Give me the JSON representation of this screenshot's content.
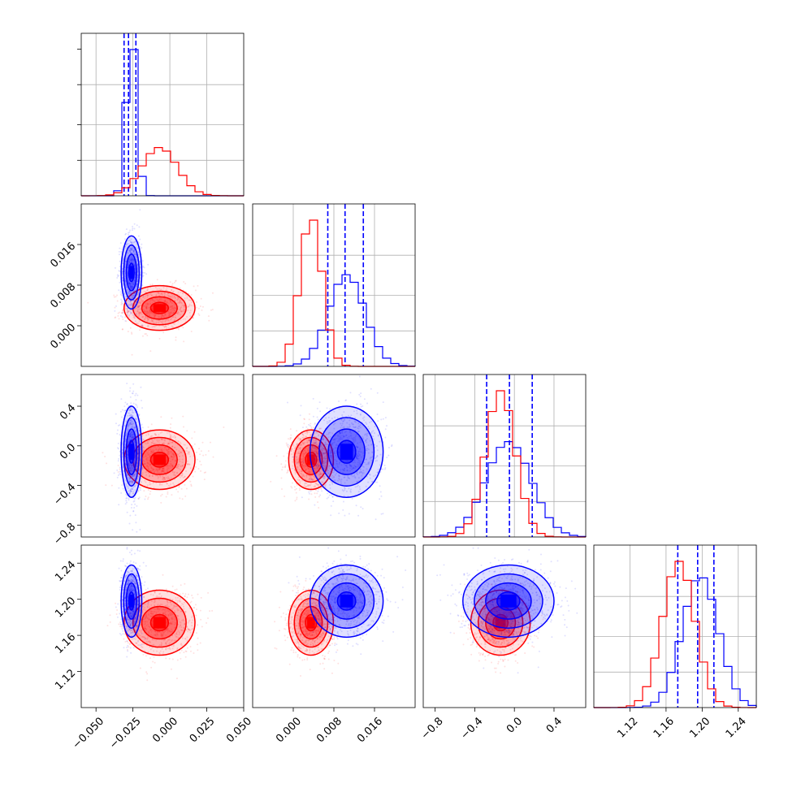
{
  "chart_data": {
    "type": "corner",
    "colors": {
      "blue": "#0000ff",
      "red": "#ff0000"
    },
    "parameters": [
      {
        "range": [
          -0.06,
          0.05
        ],
        "ticks": [
          -0.05,
          -0.025,
          0.0,
          0.025,
          0.05
        ],
        "tick_labels": [
          "−0.050",
          "−0.025",
          "0.000",
          "0.025",
          "0.050"
        ]
      },
      {
        "range": [
          -0.008,
          0.024
        ],
        "ticks": [
          0.0,
          0.008,
          0.016
        ],
        "tick_labels": [
          "0.000",
          "0.008",
          "0.016"
        ]
      },
      {
        "range": [
          -0.92,
          0.72
        ],
        "ticks": [
          -0.8,
          -0.4,
          0.0,
          0.4
        ],
        "tick_labels": [
          "−0.8",
          "−0.4",
          "0.0",
          "0.4"
        ]
      },
      {
        "range": [
          1.08,
          1.26
        ],
        "ticks": [
          1.12,
          1.16,
          1.2,
          1.24
        ],
        "tick_labels": [
          "1.12",
          "1.16",
          "1.20",
          "1.24"
        ]
      }
    ],
    "series": [
      {
        "color": "blue",
        "mean": [
          -0.026,
          0.0105,
          -0.06,
          1.198
        ],
        "sd": [
          0.0035,
          0.0036,
          0.23,
          0.02
        ],
        "corr": [
          [
            1,
            0,
            0,
            0
          ],
          [
            0,
            1,
            0,
            0
          ],
          [
            0,
            0,
            1,
            0
          ],
          [
            0,
            0,
            0,
            1
          ]
        ],
        "quantiles": [
          [
            -0.031,
            -0.028,
            -0.023
          ],
          [
            0.0068,
            0.0102,
            0.0138
          ],
          [
            -0.28,
            -0.05,
            0.18
          ],
          [
            1.173,
            1.195,
            1.213
          ]
        ]
      },
      {
        "color": "red",
        "mean": [
          -0.007,
          0.0035,
          -0.14,
          1.174
        ],
        "sd": [
          0.012,
          0.0022,
          0.15,
          0.018
        ],
        "corr": [
          [
            1,
            0,
            0,
            0
          ],
          [
            0,
            1,
            0,
            0
          ],
          [
            0,
            0,
            1,
            0
          ],
          [
            0,
            0,
            0,
            1
          ]
        ]
      }
    ],
    "contour_levels_sigma": [
      0.5,
      1.0,
      1.5,
      2.0
    ],
    "grid": true,
    "title": "",
    "xlabel": "",
    "ylabel": ""
  }
}
